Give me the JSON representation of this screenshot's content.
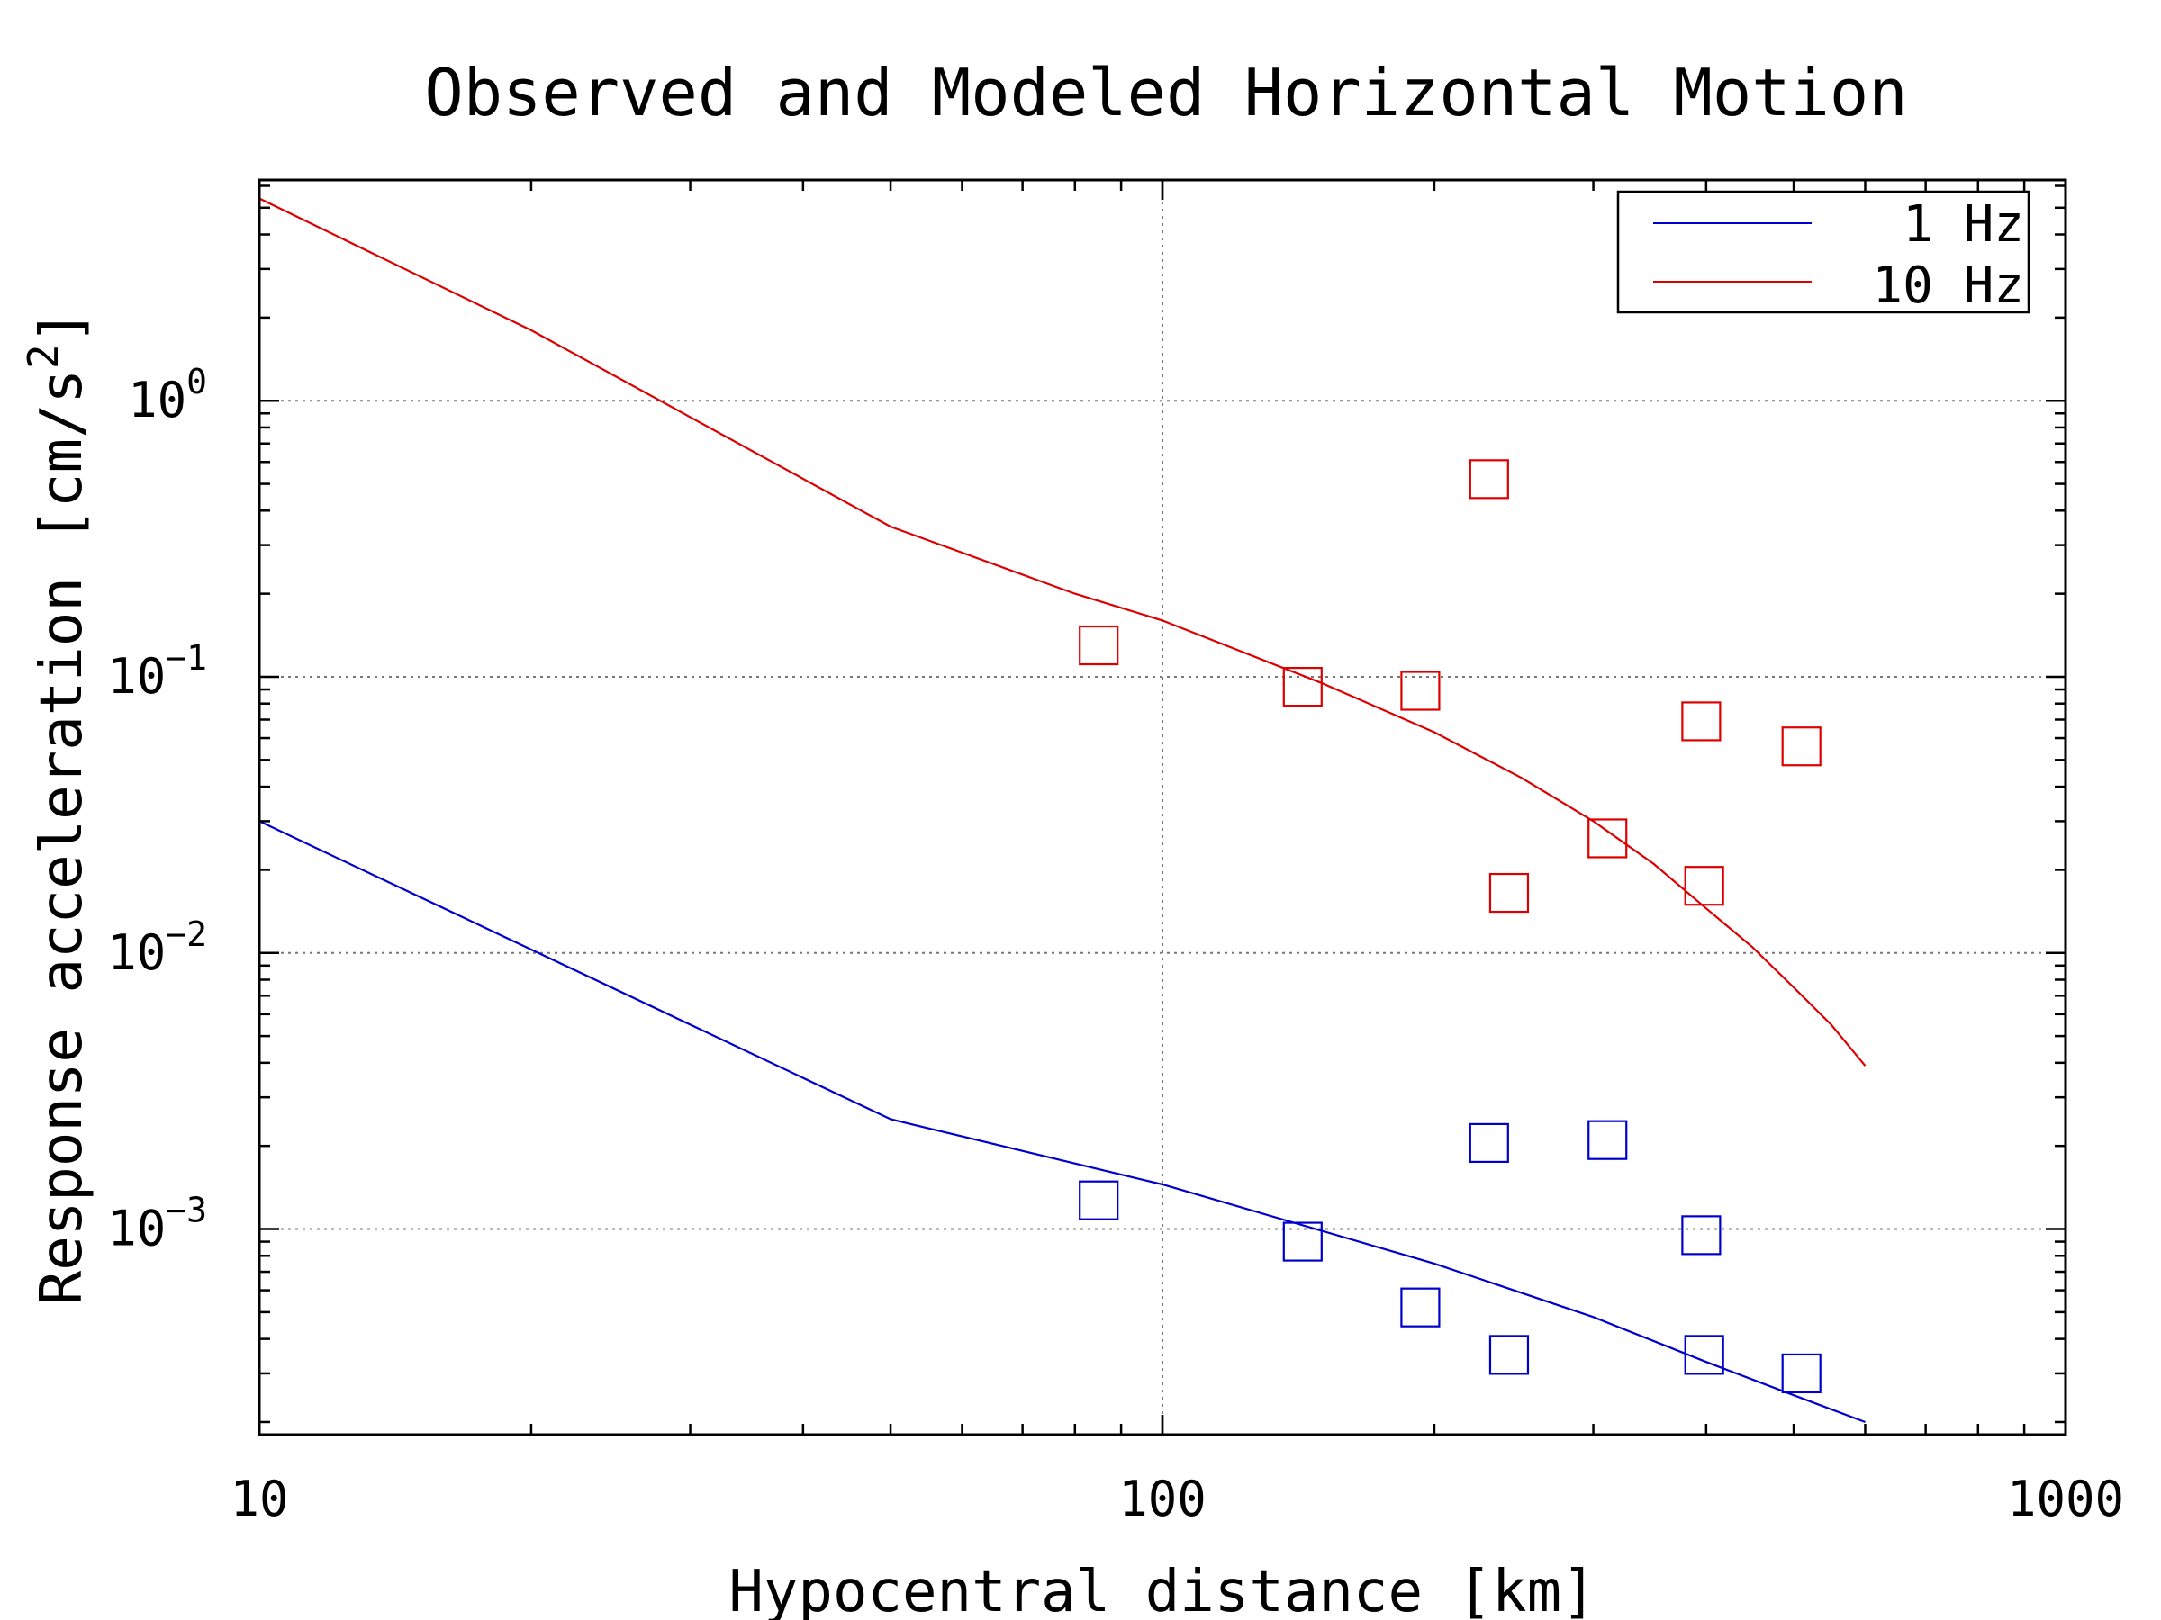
{
  "chart_data": {
    "type": "line",
    "title": "Observed and Modeled Horizontal Motion",
    "xlabel": "Hypocentral distance [km]",
    "ylabel_text": "Response acceleration [cm/s",
    "ylabel_sup": "2",
    "ylabel_close": "]",
    "x_scale": "log",
    "y_scale": "log",
    "xlim": [
      10,
      1000
    ],
    "ylim": [
      0.00018,
      6.3
    ],
    "x_ticks": [
      {
        "value": 10,
        "label": "10"
      },
      {
        "value": 100,
        "label": "100"
      },
      {
        "value": 1000,
        "label": "1000"
      }
    ],
    "y_ticks": [
      {
        "value": 0.001,
        "base": "10",
        "exp": "−3"
      },
      {
        "value": 0.01,
        "base": "10",
        "exp": "−2"
      },
      {
        "value": 0.1,
        "base": "10",
        "exp": "−1"
      },
      {
        "value": 1,
        "base": "10",
        "exp": "0"
      }
    ],
    "grid": true,
    "legend_position": "top-right",
    "series": [
      {
        "name": "1 Hz",
        "color": "#0000cc",
        "line": {
          "x": [
            10,
            50,
            100,
            200,
            300,
            400,
            500,
            600
          ],
          "y": [
            0.03,
            0.0025,
            0.00145,
            0.00075,
            0.00048,
            0.00033,
            0.00025,
            0.0002
          ]
        },
        "observed": {
          "x": [
            85,
            143,
            193,
            230,
            242,
            311,
            395,
            398,
            510
          ],
          "y": [
            0.00127,
            0.0009,
            0.00052,
            0.00205,
            0.00035,
            0.0021,
            0.00095,
            0.00035,
            0.0003
          ]
        }
      },
      {
        "name": "10 Hz",
        "color": "#dd0000",
        "line": {
          "x": [
            10,
            20,
            50,
            80,
            100,
            150,
            200,
            250,
            300,
            350,
            400,
            450,
            500,
            550,
            600
          ],
          "y": [
            5.4,
            1.8,
            0.35,
            0.2,
            0.16,
            0.095,
            0.063,
            0.043,
            0.03,
            0.021,
            0.0145,
            0.0105,
            0.0075,
            0.0055,
            0.0039
          ]
        },
        "observed": {
          "x": [
            85,
            143,
            193,
            230,
            242,
            311,
            395,
            398,
            510
          ],
          "y": [
            0.13,
            0.092,
            0.089,
            0.52,
            0.0165,
            0.026,
            0.069,
            0.0175,
            0.056
          ]
        }
      }
    ]
  }
}
